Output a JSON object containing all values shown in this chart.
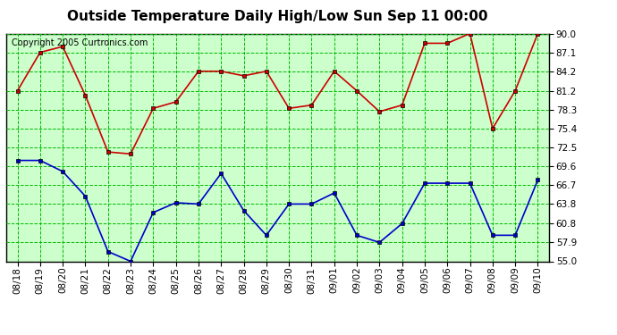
{
  "title": "Outside Temperature Daily High/Low Sun Sep 11 00:00",
  "copyright": "Copyright 2005 Curtronics.com",
  "x_labels": [
    "08/18",
    "08/19",
    "08/20",
    "08/21",
    "08/22",
    "08/23",
    "08/24",
    "08/25",
    "08/26",
    "08/27",
    "08/28",
    "08/29",
    "08/30",
    "08/31",
    "09/01",
    "09/02",
    "09/03",
    "09/04",
    "09/05",
    "09/06",
    "09/07",
    "09/08",
    "09/09",
    "09/10"
  ],
  "high_temps": [
    81.2,
    87.1,
    88.0,
    80.5,
    71.8,
    71.5,
    78.5,
    79.5,
    84.2,
    84.2,
    83.5,
    84.2,
    78.5,
    79.0,
    84.2,
    81.2,
    78.0,
    79.0,
    88.5,
    88.5,
    90.0,
    75.4,
    81.2,
    90.0
  ],
  "low_temps": [
    70.5,
    70.5,
    68.8,
    65.0,
    56.5,
    55.0,
    62.5,
    64.0,
    63.8,
    68.5,
    62.8,
    59.0,
    63.8,
    63.8,
    65.5,
    59.0,
    57.9,
    60.8,
    67.0,
    67.0,
    67.0,
    59.0,
    59.0,
    67.5
  ],
  "ylim": [
    55.0,
    90.0
  ],
  "yticks": [
    55.0,
    57.9,
    60.8,
    63.8,
    66.7,
    69.6,
    72.5,
    75.4,
    78.3,
    81.2,
    84.2,
    87.1,
    90.0
  ],
  "high_color": "#cc0000",
  "low_color": "#0000cc",
  "bg_color": "#ccffcc",
  "grid_color": "#00bb00",
  "title_fontsize": 11,
  "tick_fontsize": 7.5,
  "copyright_fontsize": 7,
  "marker": "s",
  "marker_size": 3,
  "line_width": 1.2
}
